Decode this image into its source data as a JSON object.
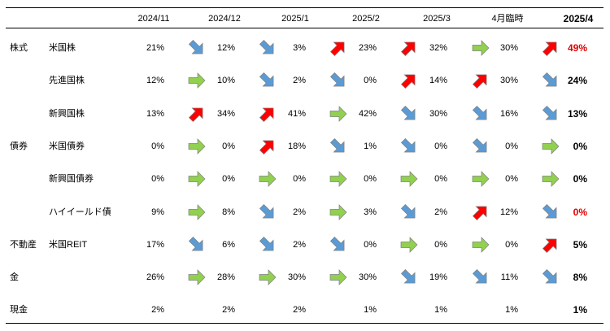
{
  "columns": [
    "2024/11",
    "2024/12",
    "2025/1",
    "2025/2",
    "2025/3",
    "4月臨時",
    "2025/4"
  ],
  "rows": [
    {
      "group": "株式",
      "name": "米国株",
      "values": [
        "21%",
        "12%",
        "3%",
        "23%",
        "32%",
        "30%",
        "49%"
      ],
      "trends": [
        "down",
        "down",
        "up",
        "up",
        "flat",
        "up"
      ],
      "last_color": "#e00000"
    },
    {
      "group": "",
      "name": "先進国株",
      "values": [
        "12%",
        "10%",
        "2%",
        "0%",
        "14%",
        "30%",
        "24%"
      ],
      "trends": [
        "flat",
        "down",
        "down",
        "up",
        "up",
        "down"
      ],
      "last_color": "#000000"
    },
    {
      "group": "",
      "name": "新興国株",
      "values": [
        "13%",
        "34%",
        "41%",
        "42%",
        "30%",
        "16%",
        "13%"
      ],
      "trends": [
        "up",
        "up",
        "flat",
        "down",
        "down",
        "down"
      ],
      "last_color": "#000000"
    },
    {
      "group": "債券",
      "name": "米国債券",
      "values": [
        "0%",
        "0%",
        "18%",
        "1%",
        "0%",
        "0%",
        "0%"
      ],
      "trends": [
        "flat",
        "up",
        "down",
        "down",
        "down",
        "flat"
      ],
      "last_color": "#000000"
    },
    {
      "group": "",
      "name": "新興国債券",
      "values": [
        "0%",
        "0%",
        "0%",
        "0%",
        "0%",
        "0%",
        "0%"
      ],
      "trends": [
        "flat",
        "flat",
        "flat",
        "flat",
        "flat",
        "flat"
      ],
      "last_color": "#000000"
    },
    {
      "group": "",
      "name": "ハイイールド債",
      "values": [
        "9%",
        "8%",
        "2%",
        "3%",
        "2%",
        "12%",
        "0%"
      ],
      "trends": [
        "flat",
        "down",
        "flat",
        "down",
        "up",
        "down"
      ],
      "last_color": "#e00000"
    },
    {
      "group": "不動産",
      "name": "米国REIT",
      "values": [
        "17%",
        "6%",
        "2%",
        "0%",
        "0%",
        "0%",
        "5%"
      ],
      "trends": [
        "down",
        "down",
        "down",
        "flat",
        "flat",
        "up"
      ],
      "last_color": "#000000"
    },
    {
      "group": "金",
      "name": "",
      "values": [
        "26%",
        "28%",
        "30%",
        "30%",
        "19%",
        "11%",
        "8%"
      ],
      "trends": [
        "flat",
        "flat",
        "flat",
        "down",
        "down",
        "down"
      ],
      "last_color": "#000000"
    },
    {
      "group": "現金",
      "name": "",
      "values": [
        "2%",
        "2%",
        "2%",
        "1%",
        "1%",
        "1%",
        "1%"
      ],
      "trends": [],
      "last_color": "#000000"
    }
  ],
  "arrow_colors": {
    "up": "#ff0000",
    "down": "#5b9bd5",
    "flat": "#92d050"
  }
}
